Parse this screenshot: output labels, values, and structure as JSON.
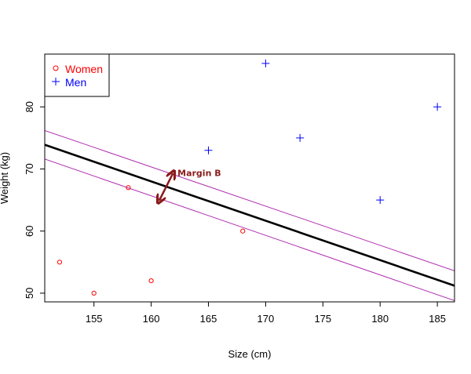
{
  "chart_data": {
    "type": "scatter",
    "title": "",
    "xlabel": "Size (cm)",
    "ylabel": "Weight (kg)",
    "xlim": [
      150.7,
      186.5
    ],
    "ylim": [
      48.6,
      88.5
    ],
    "x_ticks": [
      155,
      160,
      165,
      170,
      175,
      180,
      185
    ],
    "y_ticks": [
      50,
      60,
      70,
      80
    ],
    "grid": false,
    "legend": {
      "position": "top-left",
      "entries": [
        {
          "label": "Women",
          "marker": "circle",
          "color": "#ff0000"
        },
        {
          "label": "Men",
          "marker": "plus",
          "color": "#0000ff"
        }
      ]
    },
    "series": [
      {
        "name": "Women",
        "marker": "circle",
        "color": "#ff0000",
        "points": [
          {
            "x": 152,
            "y": 55
          },
          {
            "x": 155,
            "y": 50
          },
          {
            "x": 158,
            "y": 67
          },
          {
            "x": 160,
            "y": 52
          },
          {
            "x": 168,
            "y": 60
          }
        ]
      },
      {
        "name": "Men",
        "marker": "plus",
        "color": "#0000ff",
        "points": [
          {
            "x": 165,
            "y": 73
          },
          {
            "x": 170,
            "y": 87
          },
          {
            "x": 173,
            "y": 75
          },
          {
            "x": 180,
            "y": 65
          },
          {
            "x": 185,
            "y": 80
          }
        ]
      }
    ],
    "lines": [
      {
        "role": "decision-boundary",
        "color": "#000000",
        "from": {
          "x": 150.7,
          "y": 73.9
        },
        "to": {
          "x": 186.5,
          "y": 51.2
        }
      },
      {
        "role": "margin-upper",
        "color": "#b030b0",
        "from": {
          "x": 150.7,
          "y": 76.2
        },
        "to": {
          "x": 186.5,
          "y": 53.6
        }
      },
      {
        "role": "margin-lower",
        "color": "#b030b0",
        "from": {
          "x": 150.7,
          "y": 71.6
        },
        "to": {
          "x": 186.5,
          "y": 48.8
        }
      }
    ],
    "annotation": {
      "text": "Margin B",
      "color": "#8b1a1a",
      "text_at": {
        "x": 162.3,
        "y": 69.4
      },
      "arrow_from": {
        "x": 161.9,
        "y": 69.3
      },
      "arrow_to": {
        "x": 160.7,
        "y": 64.9
      }
    }
  }
}
